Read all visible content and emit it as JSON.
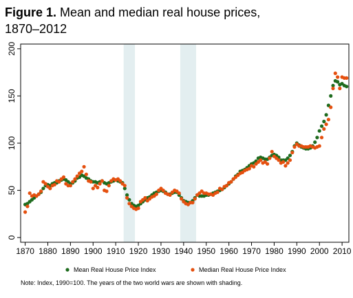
{
  "figure": {
    "label": "Figure 1.",
    "title_line1": "Mean and median real house prices,",
    "title_line2": "1870–2012",
    "note": "Note: Index, 1990=100. The years of the two world wars are shown with shading."
  },
  "chart_data": {
    "type": "scatter",
    "xlim": [
      1868,
      2013
    ],
    "ylim": [
      -5,
      205
    ],
    "x_ticks": [
      1870,
      1880,
      1890,
      1900,
      1910,
      1920,
      1930,
      1940,
      1950,
      1960,
      1970,
      1980,
      1990,
      2000,
      2010
    ],
    "y_ticks": [
      0,
      50,
      100,
      150,
      200
    ],
    "grid": false,
    "legend_position": "bottom",
    "shaded_periods": [
      [
        1914,
        1918
      ],
      [
        1939,
        1945
      ]
    ],
    "series": [
      {
        "name": "Mean Real House Price Index",
        "color": "#1e6b1e",
        "points": [
          [
            1870,
            35
          ],
          [
            1871,
            36
          ],
          [
            1872,
            38
          ],
          [
            1873,
            40
          ],
          [
            1874,
            42
          ],
          [
            1875,
            44
          ],
          [
            1876,
            46
          ],
          [
            1877,
            48
          ],
          [
            1878,
            52
          ],
          [
            1879,
            55
          ],
          [
            1880,
            56
          ],
          [
            1881,
            55
          ],
          [
            1882,
            57
          ],
          [
            1883,
            58
          ],
          [
            1884,
            58
          ],
          [
            1885,
            60
          ],
          [
            1886,
            61
          ],
          [
            1887,
            62
          ],
          [
            1888,
            61
          ],
          [
            1889,
            59
          ],
          [
            1890,
            57
          ],
          [
            1891,
            58
          ],
          [
            1892,
            60
          ],
          [
            1893,
            63
          ],
          [
            1894,
            64
          ],
          [
            1895,
            66
          ],
          [
            1896,
            65
          ],
          [
            1897,
            63
          ],
          [
            1898,
            62
          ],
          [
            1899,
            60
          ],
          [
            1900,
            59
          ],
          [
            1901,
            59
          ],
          [
            1902,
            58
          ],
          [
            1903,
            59
          ],
          [
            1904,
            60
          ],
          [
            1905,
            58
          ],
          [
            1906,
            57
          ],
          [
            1907,
            58
          ],
          [
            1908,
            59
          ],
          [
            1909,
            60
          ],
          [
            1910,
            61
          ],
          [
            1911,
            60
          ],
          [
            1912,
            59
          ],
          [
            1913,
            58
          ],
          [
            1914,
            52
          ],
          [
            1915,
            45
          ],
          [
            1916,
            40
          ],
          [
            1917,
            36
          ],
          [
            1918,
            34
          ],
          [
            1919,
            33
          ],
          [
            1920,
            34
          ],
          [
            1921,
            36
          ],
          [
            1922,
            38
          ],
          [
            1923,
            40
          ],
          [
            1924,
            42
          ],
          [
            1925,
            43
          ],
          [
            1926,
            45
          ],
          [
            1927,
            47
          ],
          [
            1928,
            48
          ],
          [
            1929,
            49
          ],
          [
            1930,
            50
          ],
          [
            1931,
            49
          ],
          [
            1932,
            48
          ],
          [
            1933,
            46
          ],
          [
            1934,
            46
          ],
          [
            1935,
            47
          ],
          [
            1936,
            48
          ],
          [
            1937,
            48
          ],
          [
            1938,
            45
          ],
          [
            1939,
            42
          ],
          [
            1940,
            39
          ],
          [
            1941,
            38
          ],
          [
            1942,
            37
          ],
          [
            1943,
            37
          ],
          [
            1944,
            39
          ],
          [
            1945,
            42
          ],
          [
            1946,
            45
          ],
          [
            1947,
            44
          ],
          [
            1948,
            44
          ],
          [
            1949,
            44
          ],
          [
            1950,
            45
          ],
          [
            1951,
            45
          ],
          [
            1952,
            46
          ],
          [
            1953,
            47
          ],
          [
            1954,
            48
          ],
          [
            1955,
            49
          ],
          [
            1956,
            50
          ],
          [
            1957,
            51
          ],
          [
            1958,
            53
          ],
          [
            1959,
            55
          ],
          [
            1960,
            57
          ],
          [
            1961,
            59
          ],
          [
            1962,
            62
          ],
          [
            1963,
            65
          ],
          [
            1964,
            67
          ],
          [
            1965,
            70
          ],
          [
            1966,
            71
          ],
          [
            1967,
            72
          ],
          [
            1968,
            74
          ],
          [
            1969,
            76
          ],
          [
            1970,
            78
          ],
          [
            1971,
            79
          ],
          [
            1972,
            81
          ],
          [
            1973,
            84
          ],
          [
            1974,
            85
          ],
          [
            1975,
            84
          ],
          [
            1976,
            83
          ],
          [
            1977,
            83
          ],
          [
            1978,
            85
          ],
          [
            1979,
            87
          ],
          [
            1980,
            88
          ],
          [
            1981,
            87
          ],
          [
            1982,
            85
          ],
          [
            1983,
            82
          ],
          [
            1984,
            82
          ],
          [
            1985,
            82
          ],
          [
            1986,
            84
          ],
          [
            1987,
            87
          ],
          [
            1988,
            91
          ],
          [
            1989,
            97
          ],
          [
            1990,
            100
          ],
          [
            1991,
            98
          ],
          [
            1992,
            96
          ],
          [
            1993,
            95
          ],
          [
            1994,
            94
          ],
          [
            1995,
            94
          ],
          [
            1996,
            95
          ],
          [
            1997,
            97
          ],
          [
            1998,
            101
          ],
          [
            1999,
            106
          ],
          [
            2000,
            113
          ],
          [
            2001,
            118
          ],
          [
            2002,
            123
          ],
          [
            2003,
            130
          ],
          [
            2004,
            140
          ],
          [
            2005,
            150
          ],
          [
            2006,
            161
          ],
          [
            2007,
            166
          ],
          [
            2008,
            165
          ],
          [
            2009,
            162
          ],
          [
            2010,
            163
          ],
          [
            2011,
            161
          ],
          [
            2012,
            160
          ]
        ]
      },
      {
        "name": "Median Real House Price Index",
        "color": "#e5500f",
        "points": [
          [
            1870,
            27
          ],
          [
            1871,
            33
          ],
          [
            1872,
            47
          ],
          [
            1873,
            44
          ],
          [
            1874,
            45
          ],
          [
            1875,
            44
          ],
          [
            1876,
            46
          ],
          [
            1877,
            49
          ],
          [
            1878,
            59
          ],
          [
            1879,
            57
          ],
          [
            1880,
            54
          ],
          [
            1881,
            52
          ],
          [
            1882,
            55
          ],
          [
            1883,
            56
          ],
          [
            1884,
            60
          ],
          [
            1885,
            59
          ],
          [
            1886,
            62
          ],
          [
            1887,
            64
          ],
          [
            1888,
            57
          ],
          [
            1889,
            55
          ],
          [
            1890,
            55
          ],
          [
            1891,
            59
          ],
          [
            1892,
            62
          ],
          [
            1893,
            65
          ],
          [
            1894,
            68
          ],
          [
            1895,
            70
          ],
          [
            1896,
            75
          ],
          [
            1897,
            67
          ],
          [
            1898,
            60
          ],
          [
            1899,
            59
          ],
          [
            1900,
            52
          ],
          [
            1901,
            55
          ],
          [
            1902,
            53
          ],
          [
            1903,
            57
          ],
          [
            1904,
            60
          ],
          [
            1905,
            50
          ],
          [
            1906,
            49
          ],
          [
            1907,
            55
          ],
          [
            1908,
            60
          ],
          [
            1909,
            62
          ],
          [
            1910,
            61
          ],
          [
            1911,
            62
          ],
          [
            1912,
            60
          ],
          [
            1913,
            57
          ],
          [
            1914,
            55
          ],
          [
            1915,
            42
          ],
          [
            1916,
            36
          ],
          [
            1917,
            33
          ],
          [
            1918,
            31
          ],
          [
            1919,
            30
          ],
          [
            1920,
            31
          ],
          [
            1921,
            38
          ],
          [
            1922,
            40
          ],
          [
            1923,
            42
          ],
          [
            1924,
            39
          ],
          [
            1925,
            41
          ],
          [
            1926,
            43
          ],
          [
            1927,
            44
          ],
          [
            1928,
            46
          ],
          [
            1929,
            50
          ],
          [
            1930,
            52
          ],
          [
            1931,
            50
          ],
          [
            1932,
            47
          ],
          [
            1933,
            46
          ],
          [
            1934,
            45
          ],
          [
            1935,
            48
          ],
          [
            1936,
            50
          ],
          [
            1937,
            49
          ],
          [
            1938,
            47
          ],
          [
            1939,
            41
          ],
          [
            1940,
            38
          ],
          [
            1941,
            36
          ],
          [
            1942,
            35
          ],
          [
            1943,
            37
          ],
          [
            1944,
            37
          ],
          [
            1945,
            41
          ],
          [
            1946,
            45
          ],
          [
            1947,
            47
          ],
          [
            1948,
            49
          ],
          [
            1949,
            47
          ],
          [
            1950,
            47
          ],
          [
            1951,
            46
          ],
          [
            1952,
            46
          ],
          [
            1953,
            45
          ],
          [
            1954,
            47
          ],
          [
            1955,
            48
          ],
          [
            1956,
            52
          ],
          [
            1957,
            51
          ],
          [
            1958,
            54
          ],
          [
            1959,
            55
          ],
          [
            1960,
            58
          ],
          [
            1961,
            59
          ],
          [
            1962,
            62
          ],
          [
            1963,
            64
          ],
          [
            1964,
            66
          ],
          [
            1965,
            68
          ],
          [
            1966,
            69
          ],
          [
            1967,
            71
          ],
          [
            1968,
            72
          ],
          [
            1969,
            73
          ],
          [
            1970,
            76
          ],
          [
            1971,
            75
          ],
          [
            1972,
            78
          ],
          [
            1973,
            80
          ],
          [
            1974,
            82
          ],
          [
            1975,
            79
          ],
          [
            1976,
            80
          ],
          [
            1977,
            78
          ],
          [
            1978,
            84
          ],
          [
            1979,
            91
          ],
          [
            1980,
            86
          ],
          [
            1981,
            84
          ],
          [
            1982,
            82
          ],
          [
            1983,
            79
          ],
          [
            1984,
            80
          ],
          [
            1985,
            76
          ],
          [
            1986,
            79
          ],
          [
            1987,
            82
          ],
          [
            1988,
            90
          ],
          [
            1989,
            96
          ],
          [
            1990,
            99
          ],
          [
            1991,
            97
          ],
          [
            1992,
            97
          ],
          [
            1993,
            96
          ],
          [
            1994,
            96
          ],
          [
            1995,
            96
          ],
          [
            1996,
            97
          ],
          [
            1997,
            96
          ],
          [
            1998,
            95
          ],
          [
            1999,
            96
          ],
          [
            2000,
            97
          ],
          [
            2001,
            106
          ],
          [
            2002,
            115
          ],
          [
            2003,
            120
          ],
          [
            2004,
            125
          ],
          [
            2005,
            138
          ],
          [
            2006,
            158
          ],
          [
            2007,
            174
          ],
          [
            2008,
            170
          ],
          [
            2009,
            158
          ],
          [
            2010,
            170
          ],
          [
            2011,
            169
          ],
          [
            2012,
            169
          ]
        ]
      }
    ]
  }
}
